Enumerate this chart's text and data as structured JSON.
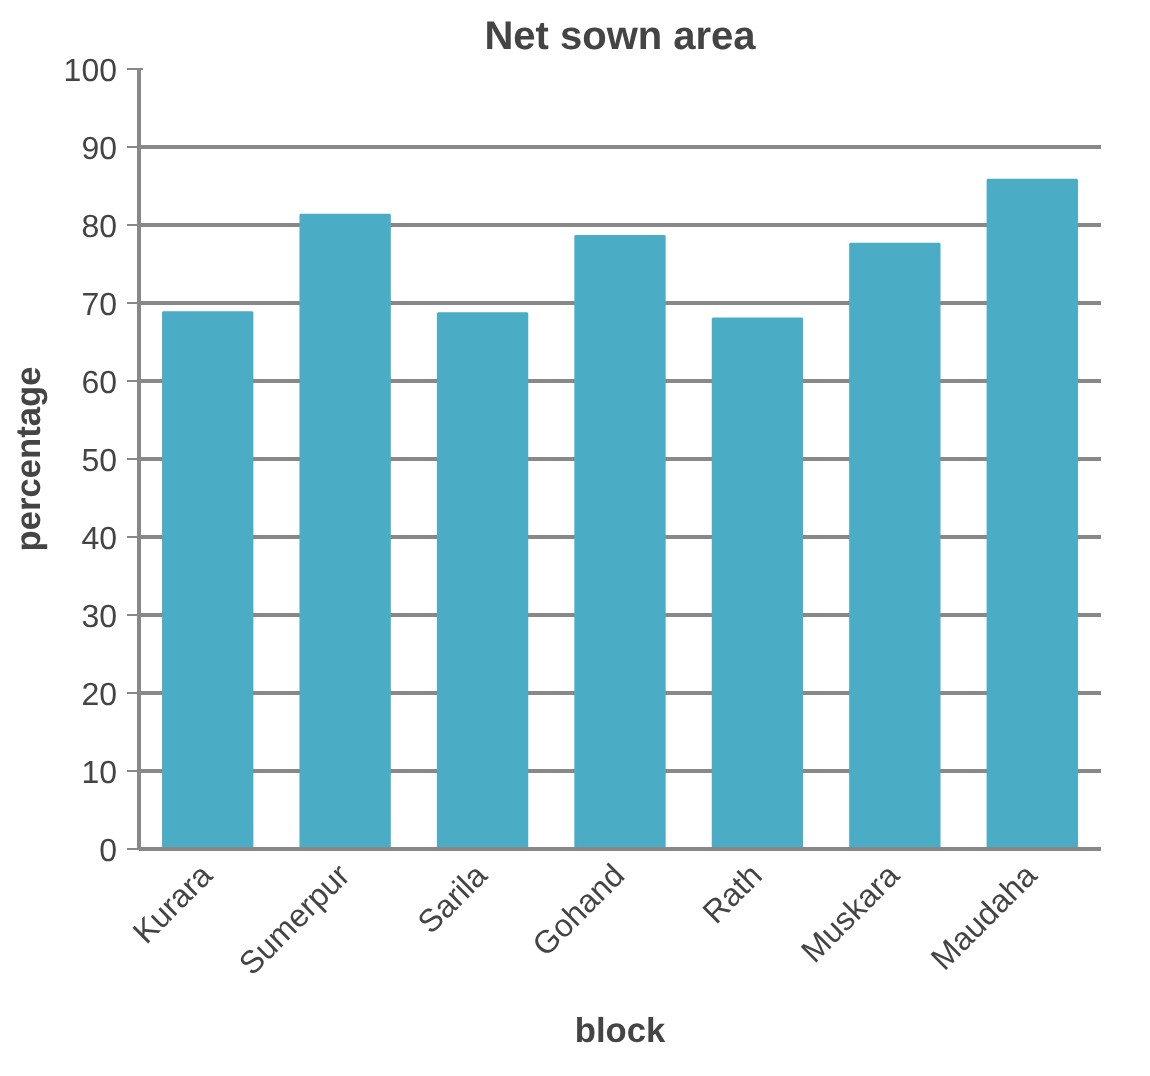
{
  "chart_data": {
    "type": "bar",
    "title": "Net sown area",
    "xlabel": "block",
    "ylabel": "percentage",
    "categories": [
      "Kurara",
      "Sumerpur",
      "Sarila",
      "Gohand",
      "Rath",
      "Muskara",
      "Maudaha"
    ],
    "values": [
      68.8,
      81.3,
      68.7,
      78.6,
      68.0,
      77.6,
      85.8
    ],
    "color": "#4bacc6",
    "ylim": [
      0,
      100
    ],
    "yticks": [
      0,
      10,
      20,
      30,
      40,
      50,
      60,
      70,
      80,
      90,
      100
    ],
    "grid": "y"
  }
}
